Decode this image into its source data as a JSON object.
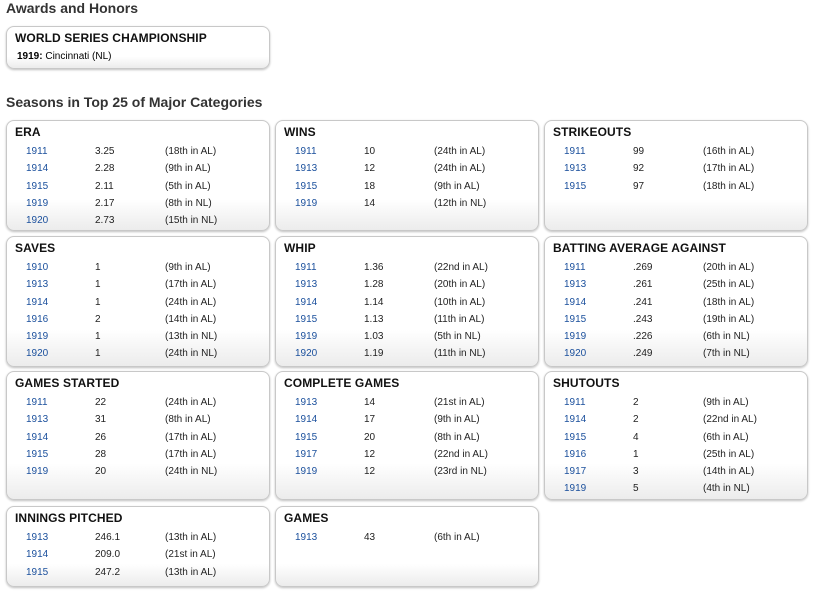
{
  "awards_title": "Awards and Honors",
  "world_series": {
    "title": "WORLD SERIES CHAMPIONSHIP",
    "year": "1919:",
    "team": "Cincinnati (NL)"
  },
  "seasons_title": "Seasons in Top 25 of Major Categories",
  "categories": [
    {
      "title": "ERA",
      "rows": [
        [
          "1911",
          "3.25",
          "(18th in AL)"
        ],
        [
          "1914",
          "2.28",
          "(9th in AL)"
        ],
        [
          "1915",
          "2.11",
          "(5th in AL)"
        ],
        [
          "1919",
          "2.17",
          "(8th in NL)"
        ],
        [
          "1920",
          "2.73",
          "(15th in NL)"
        ]
      ]
    },
    {
      "title": "WINS",
      "rows": [
        [
          "1911",
          "10",
          "(24th in AL)"
        ],
        [
          "1913",
          "12",
          "(24th in AL)"
        ],
        [
          "1915",
          "18",
          "(9th in AL)"
        ],
        [
          "1919",
          "14",
          "(12th in NL)"
        ]
      ]
    },
    {
      "title": "STRIKEOUTS",
      "rows": [
        [
          "1911",
          "99",
          "(16th in AL)"
        ],
        [
          "1913",
          "92",
          "(17th in AL)"
        ],
        [
          "1915",
          "97",
          "(18th in AL)"
        ]
      ]
    },
    {
      "title": "SAVES",
      "rows": [
        [
          "1910",
          "1",
          "(9th in AL)"
        ],
        [
          "1913",
          "1",
          "(17th in AL)"
        ],
        [
          "1914",
          "1",
          "(24th in AL)"
        ],
        [
          "1916",
          "2",
          "(14th in AL)"
        ],
        [
          "1919",
          "1",
          "(13th in NL)"
        ],
        [
          "1920",
          "1",
          "(24th in NL)"
        ]
      ]
    },
    {
      "title": "WHIP",
      "rows": [
        [
          "1911",
          "1.36",
          "(22nd in AL)"
        ],
        [
          "1913",
          "1.28",
          "(20th in AL)"
        ],
        [
          "1914",
          "1.14",
          "(10th in AL)"
        ],
        [
          "1915",
          "1.13",
          "(11th in AL)"
        ],
        [
          "1919",
          "1.03",
          "(5th in NL)"
        ],
        [
          "1920",
          "1.19",
          "(11th in NL)"
        ]
      ]
    },
    {
      "title": "BATTING AVERAGE AGAINST",
      "rows": [
        [
          "1911",
          ".269",
          "(20th in AL)"
        ],
        [
          "1913",
          ".261",
          "(25th in AL)"
        ],
        [
          "1914",
          ".241",
          "(18th in AL)"
        ],
        [
          "1915",
          ".243",
          "(19th in AL)"
        ],
        [
          "1919",
          ".226",
          "(6th in NL)"
        ],
        [
          "1920",
          ".249",
          "(7th in NL)"
        ]
      ]
    },
    {
      "title": "GAMES STARTED",
      "rows": [
        [
          "1911",
          "22",
          "(24th in AL)"
        ],
        [
          "1913",
          "31",
          "(8th in AL)"
        ],
        [
          "1914",
          "26",
          "(17th in AL)"
        ],
        [
          "1915",
          "28",
          "(17th in AL)"
        ],
        [
          "1919",
          "20",
          "(24th in NL)"
        ]
      ]
    },
    {
      "title": "COMPLETE GAMES",
      "rows": [
        [
          "1913",
          "14",
          "(21st in AL)"
        ],
        [
          "1914",
          "17",
          "(9th in AL)"
        ],
        [
          "1915",
          "20",
          "(8th in AL)"
        ],
        [
          "1917",
          "12",
          "(22nd in AL)"
        ],
        [
          "1919",
          "12",
          "(23rd in NL)"
        ]
      ]
    },
    {
      "title": "SHUTOUTS",
      "rows": [
        [
          "1911",
          "2",
          "(9th in AL)"
        ],
        [
          "1914",
          "2",
          "(22nd in AL)"
        ],
        [
          "1915",
          "4",
          "(6th in AL)"
        ],
        [
          "1916",
          "1",
          "(25th in AL)"
        ],
        [
          "1917",
          "3",
          "(14th in AL)"
        ],
        [
          "1919",
          "5",
          "(4th in NL)"
        ]
      ]
    },
    {
      "title": "INNINGS PITCHED",
      "rows": [
        [
          "1913",
          "246.1",
          "(13th in AL)"
        ],
        [
          "1914",
          "209.0",
          "(21st in AL)"
        ],
        [
          "1915",
          "247.2",
          "(13th in AL)"
        ]
      ]
    },
    {
      "title": "GAMES",
      "rows": [
        [
          "1913",
          "43",
          "(6th in AL)"
        ]
      ]
    }
  ]
}
